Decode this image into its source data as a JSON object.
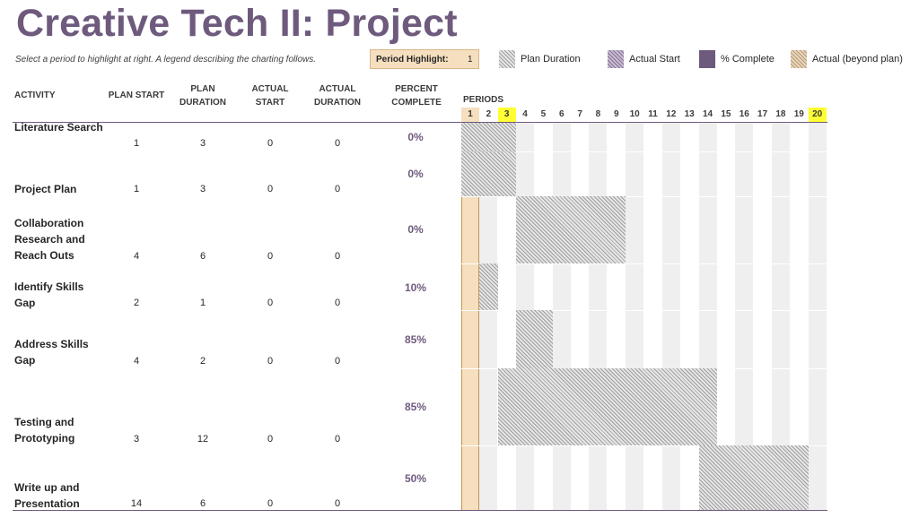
{
  "title": "Creative Tech II: Project",
  "subtitle": "Select a period to highlight at right.  A legend describing the charting follows.",
  "period_highlight": {
    "label": "Period Highlight:",
    "value": "1"
  },
  "legend": {
    "plan_duration": "Plan Duration",
    "actual_start": "Actual Start",
    "percent_complete": "% Complete",
    "actual_beyond": "Actual (beyond plan)"
  },
  "colors": {
    "accent": "#6e5a7d",
    "highlight": "#f5dfbf",
    "today": "#ffff33"
  },
  "headers": {
    "activity": "ACTIVITY",
    "plan_start": "PLAN START",
    "plan_duration": "PLAN DURATION",
    "actual_start": "ACTUAL START",
    "actual_duration": "ACTUAL DURATION",
    "percent_complete": "PERCENT COMPLETE",
    "periods": "PERIODS"
  },
  "periods": [
    "1",
    "2",
    "3",
    "4",
    "5",
    "6",
    "7",
    "8",
    "9",
    "10",
    "11",
    "12",
    "13",
    "14",
    "15",
    "16",
    "17",
    "18",
    "19",
    "20"
  ],
  "highlighted_periods": [
    "3",
    "20"
  ],
  "rows": [
    {
      "activity": "Literature Search",
      "plan_start": 1,
      "plan_duration": 3,
      "actual_start": 0,
      "actual_duration": 0,
      "percent": "0%"
    },
    {
      "activity": "Project Plan",
      "plan_start": 1,
      "plan_duration": 3,
      "actual_start": 0,
      "actual_duration": 0,
      "percent": "0%"
    },
    {
      "activity": "Collaboration Research and Reach Outs",
      "plan_start": 4,
      "plan_duration": 6,
      "actual_start": 0,
      "actual_duration": 0,
      "percent": "0%"
    },
    {
      "activity": "Identify Skills Gap",
      "plan_start": 2,
      "plan_duration": 1,
      "actual_start": 0,
      "actual_duration": 0,
      "percent": "10%"
    },
    {
      "activity": "Address Skills Gap",
      "plan_start": 4,
      "plan_duration": 2,
      "actual_start": 0,
      "actual_duration": 0,
      "percent": "85%"
    },
    {
      "activity": "Testing and Prototyping",
      "plan_start": 3,
      "plan_duration": 12,
      "actual_start": 0,
      "actual_duration": 0,
      "percent": "85%"
    },
    {
      "activity": "Write up and Presentation",
      "plan_start": 14,
      "plan_duration": 6,
      "actual_start": 0,
      "actual_duration": 0,
      "percent": "50%"
    }
  ]
}
